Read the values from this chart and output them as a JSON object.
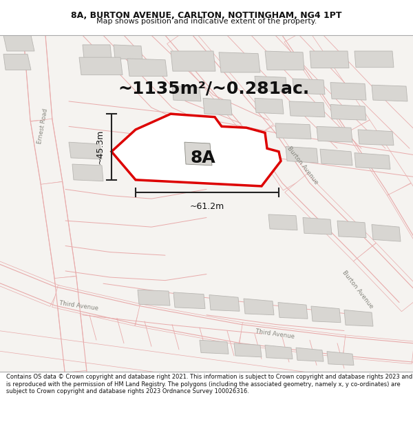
{
  "title": "8A, BURTON AVENUE, CARLTON, NOTTINGHAM, NG4 1PT",
  "subtitle": "Map shows position and indicative extent of the property.",
  "area_text": "~1135m²/~0.281ac.",
  "label_8A": "8A",
  "dim_width": "~61.2m",
  "dim_height": "~45.3m",
  "footer": "Contains OS data © Crown copyright and database right 2021. This information is subject to Crown copyright and database rights 2023 and is reproduced with the permission of HM Land Registry. The polygons (including the associated geometry, namely x, y co-ordinates) are subject to Crown copyright and database rights 2023 Ordnance Survey 100026316.",
  "map_bg": "#f5f3f0",
  "road_fill": "#f5f3f0",
  "road_line": "#e8aaaa",
  "block_fill": "#d8d6d2",
  "block_line": "#b8b6b2",
  "prop_line": "#dd0000",
  "prop_fill": "#ffffff",
  "dim_color": "#222222",
  "street_label_color": "#888880",
  "title_color": "#111111",
  "footer_bg": "#ffffff",
  "footer_color": "#111111",
  "title_bg": "#ffffff"
}
